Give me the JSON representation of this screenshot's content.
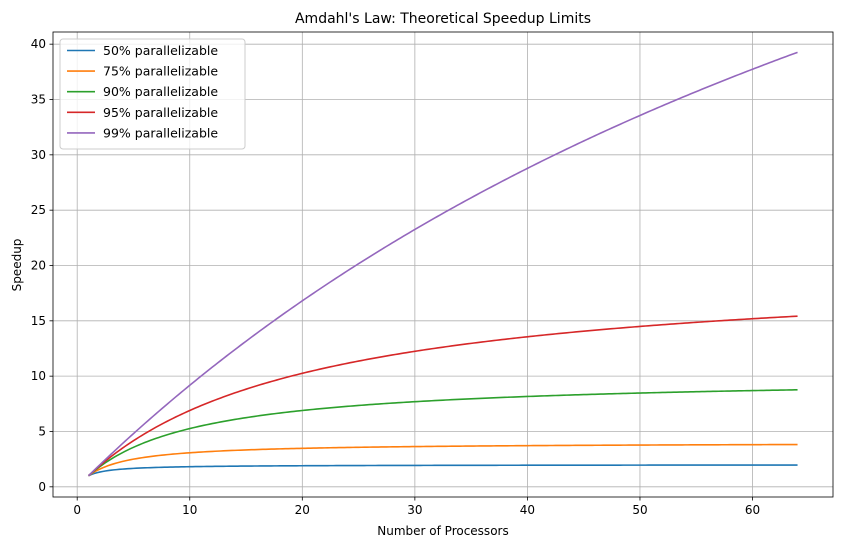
{
  "chart_data": {
    "type": "line",
    "title": "Amdahl's Law: Theoretical Speedup Limits",
    "xlabel": "Number of Processors",
    "ylabel": "Speedup",
    "xlim": [
      -2.15,
      67.15
    ],
    "ylim": [
      -0.92,
      41.1
    ],
    "x_ticks": [
      0,
      10,
      20,
      30,
      40,
      50,
      60
    ],
    "y_ticks": [
      0,
      5,
      10,
      15,
      20,
      25,
      30,
      35,
      40
    ],
    "grid": true,
    "legend_position": "top-left",
    "x_range": [
      1,
      64
    ],
    "series": [
      {
        "name": "50% parallelizable",
        "p": 0.5,
        "color": "#1f77b4"
      },
      {
        "name": "75% parallelizable",
        "p": 0.75,
        "color": "#ff7f0e"
      },
      {
        "name": "90% parallelizable",
        "p": 0.9,
        "color": "#2ca02c"
      },
      {
        "name": "95% parallelizable",
        "p": 0.95,
        "color": "#d62728"
      },
      {
        "name": "99% parallelizable",
        "p": 0.99,
        "color": "#9467bd"
      }
    ]
  }
}
